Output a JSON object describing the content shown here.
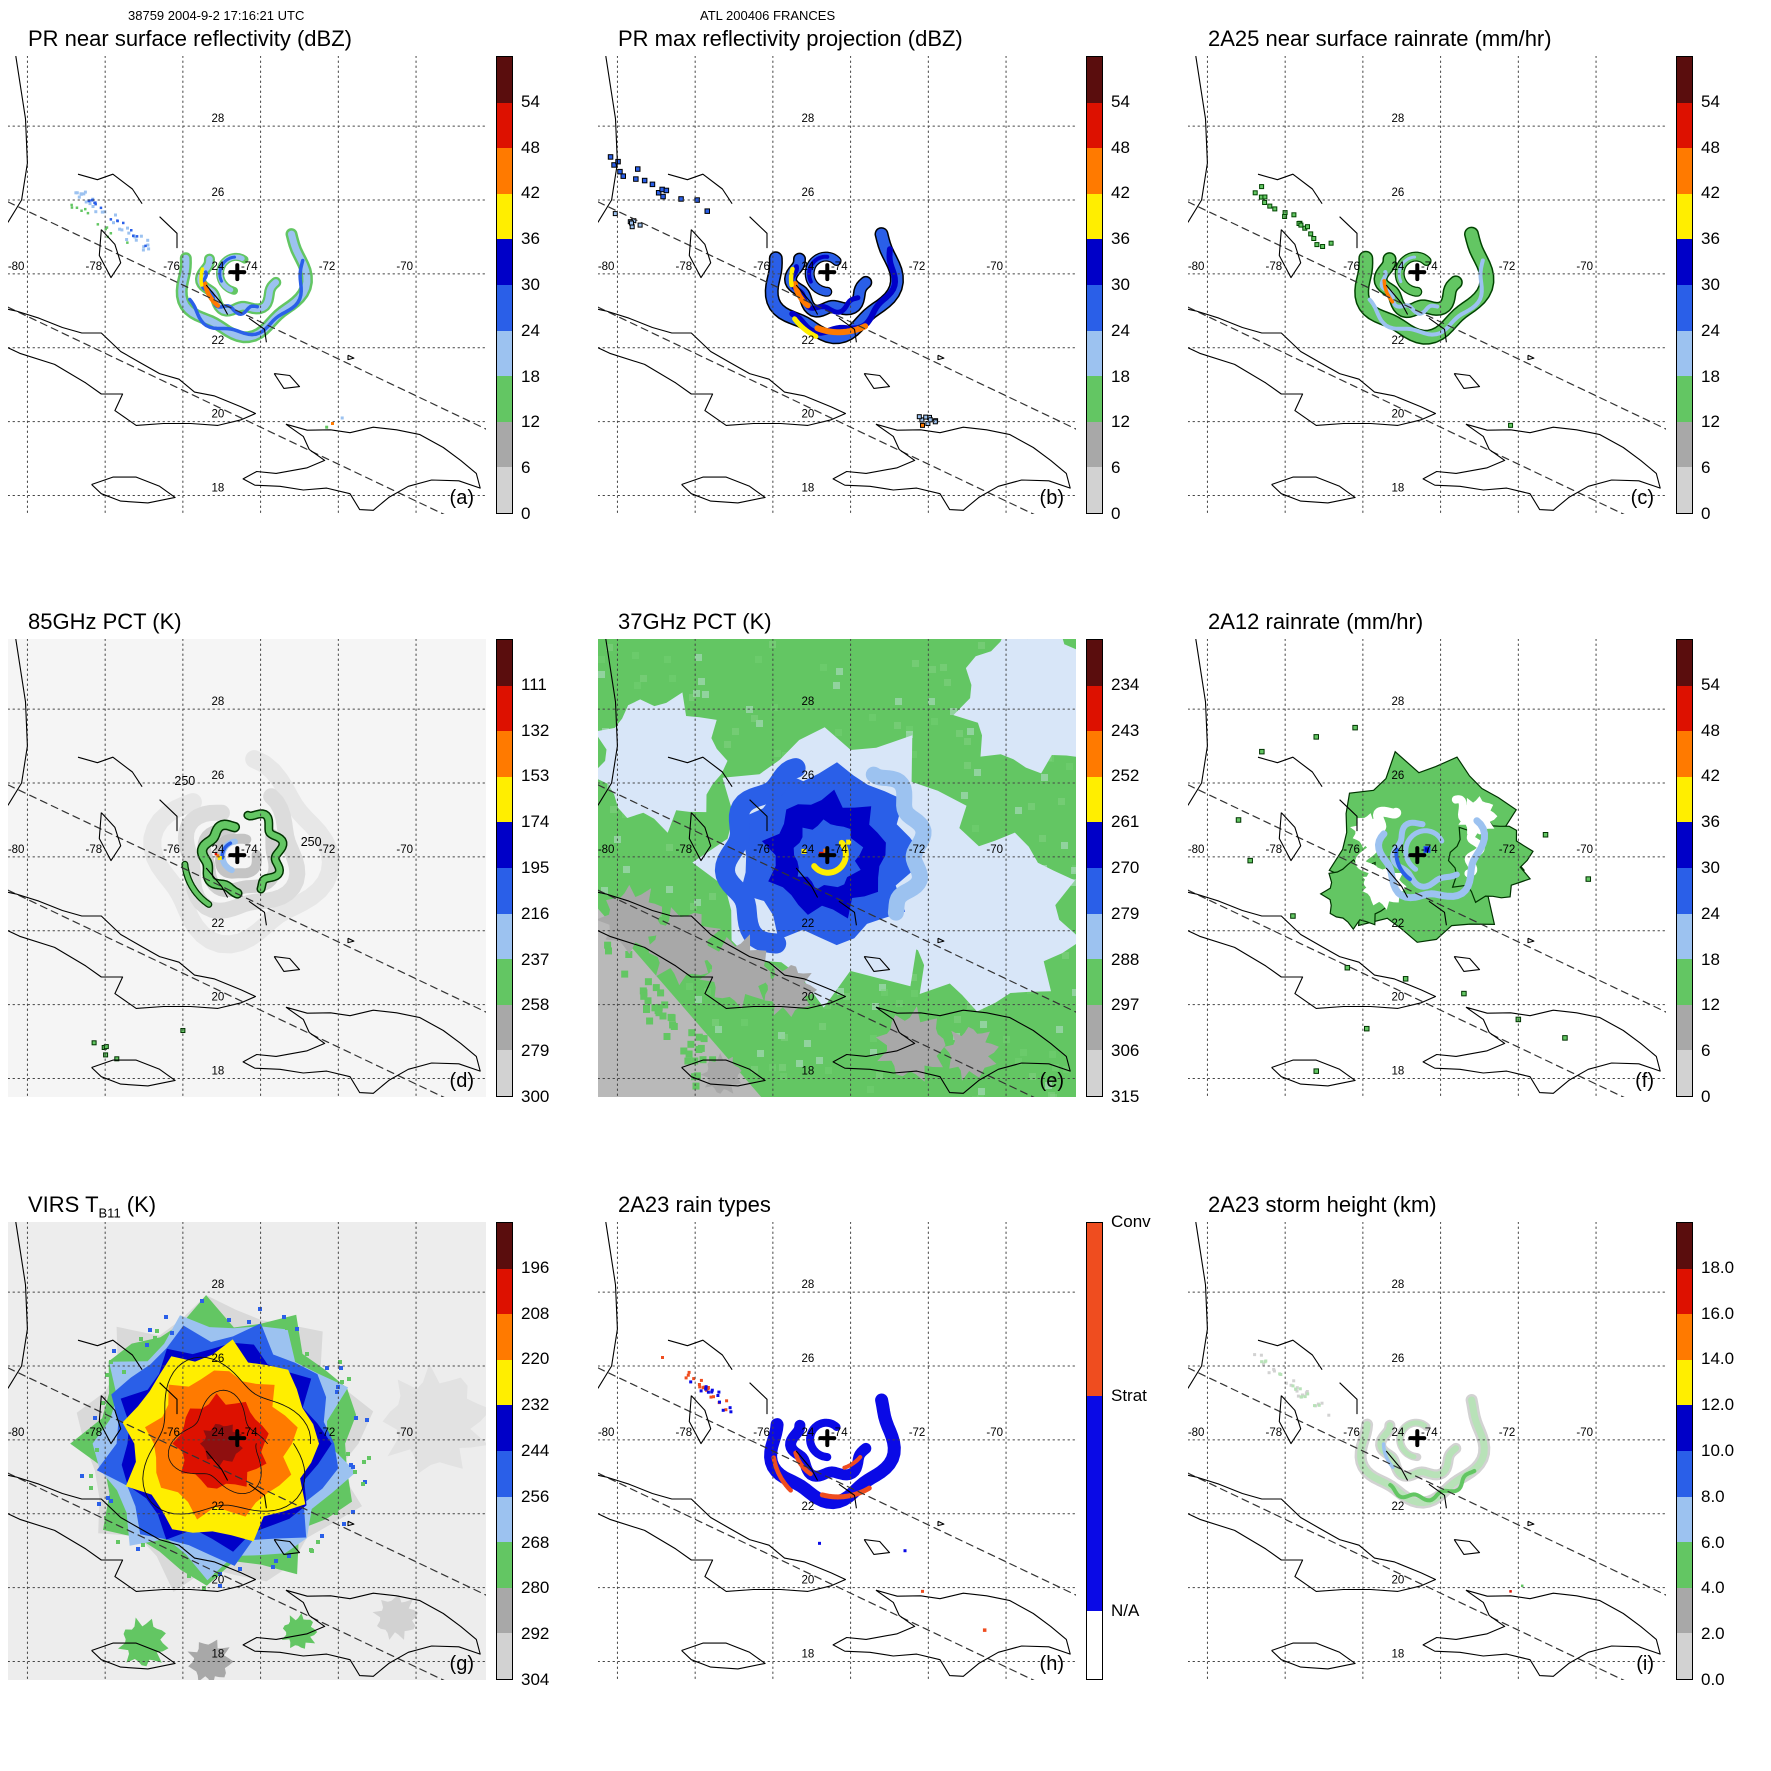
{
  "header": {
    "left": "38759 2004-9-2 17:16:21 UTC",
    "center": "ATL 200406 FRANCES"
  },
  "map": {
    "domain": {
      "lon_min": -80.5,
      "lon_max": -68.2,
      "lat_min": 17.5,
      "lat_max": 29.9
    },
    "lon_values": [
      -80,
      -78,
      -76,
      -74,
      -72,
      -70
    ],
    "lon_labels": [
      "-80",
      "-78",
      "-76",
      "-74",
      "-72",
      "-70"
    ],
    "lat_values": [
      18,
      20,
      22,
      24,
      26,
      28
    ],
    "lat_labels": [
      "18",
      "20",
      "22",
      "24",
      "26",
      "28"
    ],
    "storm_center": {
      "lon": -74.6,
      "lat": 24.05
    },
    "swath_lines": [
      [
        [
          -80.5,
          25.95
        ],
        [
          -68.2,
          19.8
        ]
      ],
      [
        [
          -80.5,
          23.1
        ],
        [
          -68.2,
          16.95
        ]
      ]
    ]
  },
  "palette": {
    "maroon": "#5a0d0d",
    "red": "#dd1100",
    "orange": "#ff7a00",
    "yellow": "#ffee00",
    "blue3": "#0000c8",
    "blue2": "#2a5fe8",
    "blue1": "#9cc2f0",
    "green": "#63c663",
    "gray2": "#a8a8a8",
    "gray1": "#d2d2d2",
    "white": "#ffffff",
    "paleblue": "#d8e6f8",
    "palegreen": "#b8e2b8",
    "conv": "#ef4d1f",
    "strat": "#0a0ae6"
  },
  "panels": [
    {
      "id": "a",
      "letter": "(a)",
      "title": "PR near surface reflectivity (dBZ)",
      "title_parts": [
        {
          "t": "PR near surface reflectivity (dBZ)"
        }
      ],
      "overlay": "a",
      "colorbar": {
        "colors": [
          "maroon",
          "red",
          "orange",
          "yellow",
          "blue3",
          "blue2",
          "blue1",
          "green",
          "gray2",
          "gray1"
        ],
        "ticks": [
          "54",
          "48",
          "42",
          "36",
          "30",
          "24",
          "18",
          "12",
          "6",
          "0"
        ]
      }
    },
    {
      "id": "b",
      "letter": "(b)",
      "title": "PR max reflectivity projection (dBZ)",
      "title_parts": [
        {
          "t": "PR max reflectivity projection (dBZ)"
        }
      ],
      "overlay": "b",
      "colorbar": {
        "colors": [
          "maroon",
          "red",
          "orange",
          "yellow",
          "blue3",
          "blue2",
          "blue1",
          "green",
          "gray2",
          "gray1"
        ],
        "ticks": [
          "54",
          "48",
          "42",
          "36",
          "30",
          "24",
          "18",
          "12",
          "6",
          "0"
        ]
      }
    },
    {
      "id": "c",
      "letter": "(c)",
      "title": "2A25 near surface rainrate (mm/hr)",
      "title_parts": [
        {
          "t": "2A25 near surface rainrate (mm/hr)"
        }
      ],
      "overlay": "c",
      "colorbar": {
        "colors": [
          "maroon",
          "red",
          "orange",
          "yellow",
          "blue3",
          "blue2",
          "blue1",
          "green",
          "gray2",
          "gray1"
        ],
        "ticks": [
          "54",
          "48",
          "42",
          "36",
          "30",
          "24",
          "18",
          "12",
          "6",
          "0"
        ]
      }
    },
    {
      "id": "d",
      "letter": "(d)",
      "title": "85GHz PCT (K)",
      "title_parts": [
        {
          "t": "85GHz PCT (K)"
        }
      ],
      "overlay": "d",
      "map_labels": [
        {
          "text": "250",
          "lon": -75.95,
          "lat": 25.95
        },
        {
          "text": "250",
          "lon": -72.7,
          "lat": 24.3
        }
      ],
      "colorbar": {
        "colors": [
          "maroon",
          "red",
          "orange",
          "yellow",
          "blue3",
          "blue2",
          "blue1",
          "green",
          "gray2",
          "gray1"
        ],
        "ticks": [
          "111",
          "132",
          "153",
          "174",
          "195",
          "216",
          "237",
          "258",
          "279",
          "300"
        ]
      }
    },
    {
      "id": "e",
      "letter": "(e)",
      "title": "37GHz PCT (K)",
      "title_parts": [
        {
          "t": "37GHz PCT (K)"
        }
      ],
      "overlay": "e",
      "colorbar": {
        "colors": [
          "maroon",
          "red",
          "orange",
          "yellow",
          "blue3",
          "blue2",
          "blue1",
          "green",
          "gray2",
          "gray1"
        ],
        "ticks": [
          "234",
          "243",
          "252",
          "261",
          "270",
          "279",
          "288",
          "297",
          "306",
          "315"
        ]
      }
    },
    {
      "id": "f",
      "letter": "(f)",
      "title": "2A12 rainrate (mm/hr)",
      "title_parts": [
        {
          "t": "2A12 rainrate (mm/hr)"
        }
      ],
      "overlay": "f",
      "colorbar": {
        "colors": [
          "maroon",
          "red",
          "orange",
          "yellow",
          "blue3",
          "blue2",
          "blue1",
          "green",
          "gray2",
          "gray1"
        ],
        "ticks": [
          "54",
          "48",
          "42",
          "36",
          "30",
          "24",
          "18",
          "12",
          "6",
          "0"
        ]
      }
    },
    {
      "id": "g",
      "letter": "(g)",
      "title": "VIRS TB11 (K)",
      "title_parts": [
        {
          "t": "VIRS T"
        },
        {
          "t": "B11",
          "sub": true
        },
        {
          "t": " (K)"
        }
      ],
      "overlay": "g",
      "colorbar": {
        "colors": [
          "maroon",
          "red",
          "orange",
          "yellow",
          "blue3",
          "blue2",
          "blue1",
          "green",
          "gray2",
          "gray1"
        ],
        "ticks": [
          "196",
          "208",
          "220",
          "232",
          "244",
          "256",
          "268",
          "280",
          "292",
          "304"
        ]
      }
    },
    {
      "id": "h",
      "letter": "(h)",
      "title": "2A23 rain types",
      "title_parts": [
        {
          "t": "2A23 rain types"
        }
      ],
      "overlay": "h",
      "colorbar": {
        "colors": [
          "conv",
          "strat",
          "white"
        ],
        "ticks": [
          "Conv",
          "Strat",
          "N/A"
        ],
        "tick_positions": [
          0.0,
          0.38,
          0.85
        ],
        "segment_heights": [
          0.38,
          0.47,
          0.15
        ]
      }
    },
    {
      "id": "i",
      "letter": "(i)",
      "title": "2A23 storm height (km)",
      "title_parts": [
        {
          "t": "2A23 storm height (km)"
        }
      ],
      "overlay": "i",
      "colorbar": {
        "colors": [
          "maroon",
          "red",
          "orange",
          "yellow",
          "blue3",
          "blue2",
          "blue1",
          "green",
          "gray2",
          "gray1"
        ],
        "ticks": [
          "18.0",
          "16.0",
          "14.0",
          "12.0",
          "10.0",
          "8.0",
          "6.0",
          "4.0",
          "2.0",
          "0.0"
        ]
      }
    }
  ],
  "chart_data": [
    {
      "panel": "a",
      "type": "heatmap",
      "title": "PR near surface reflectivity",
      "units": "dBZ",
      "colorbar_ticks": [
        54,
        48,
        42,
        36,
        30,
        24,
        18,
        12,
        6,
        0
      ],
      "lon_range": [
        -80.5,
        -68.2
      ],
      "lat_range": [
        17.5,
        29.9
      ],
      "storm_center": {
        "lon": -74.6,
        "lat": 24.05
      },
      "notes": "Spiral rainbands 18-42 dBZ east-south-west of center inside narrow PR swath; light-blue speckle band to the northwest."
    },
    {
      "panel": "b",
      "type": "heatmap",
      "title": "PR max reflectivity projection",
      "units": "dBZ",
      "colorbar_ticks": [
        54,
        48,
        42,
        36,
        30,
        24,
        18,
        12,
        6,
        0
      ],
      "lon_range": [
        -80.5,
        -68.2
      ],
      "lat_range": [
        17.5,
        29.9
      ],
      "storm_center": {
        "lon": -74.6,
        "lat": 24.05
      },
      "notes": "Same bands as (a) but broader and more intense, 24-48 dBZ, with scattered echoes along the swath edges."
    },
    {
      "panel": "c",
      "type": "heatmap",
      "title": "2A25 near surface rainrate",
      "units": "mm/hr",
      "colorbar_ticks": [
        54,
        48,
        42,
        36,
        30,
        24,
        18,
        12,
        6,
        0
      ],
      "lon_range": [
        -80.5,
        -68.2
      ],
      "lat_range": [
        17.5,
        29.9
      ],
      "storm_center": {
        "lon": -74.6,
        "lat": 24.05
      },
      "notes": "Green (6-18 mm/hr) comma-shaped rainbands with embedded light-blue and small orange cores."
    },
    {
      "panel": "d",
      "type": "heatmap",
      "title": "85GHz PCT",
      "units": "K",
      "colorbar_ticks": [
        111,
        132,
        153,
        174,
        195,
        216,
        237,
        258,
        279,
        300
      ],
      "contour_labels": [
        250,
        250
      ],
      "storm_center": {
        "lon": -74.6,
        "lat": 24.05
      },
      "notes": "Mostly 258-300 K (gray/white); 237-258 K green contours around the eyewall with small 195-216 K blue and warm-spot pixels; 250 K contours labeled."
    },
    {
      "panel": "e",
      "type": "heatmap",
      "title": "37GHz PCT",
      "units": "K",
      "colorbar_ticks": [
        234,
        243,
        252,
        261,
        270,
        279,
        288,
        297,
        306,
        315
      ],
      "storm_center": {
        "lon": -74.6,
        "lat": 24.05
      },
      "notes": "Broad 288-297 K green background (ocean), 261-279 K blue cyclone spiral, 252-261 K yellow eyewall pixels, <243 K red eye pixel, gray land (Cuba, Hispaniola, Jamaica)."
    },
    {
      "panel": "f",
      "type": "heatmap",
      "title": "2A12 rainrate",
      "units": "mm/hr",
      "colorbar_ticks": [
        54,
        48,
        42,
        36,
        30,
        24,
        18,
        12,
        6,
        0
      ],
      "storm_center": {
        "lon": -74.6,
        "lat": 24.05
      },
      "notes": "Wide green (6-18 mm/hr) shield with light-blue spiral arcs and a small dark-blue 24-30 mm/hr core at center; scattered outlined green cells around periphery."
    },
    {
      "panel": "g",
      "type": "heatmap",
      "title": "VIRS TB11",
      "units": "K",
      "colorbar_ticks": [
        196,
        208,
        220,
        232,
        244,
        256,
        268,
        280,
        292,
        304
      ],
      "storm_center": {
        "lon": -74.6,
        "lat": 24.05
      },
      "notes": "Large cold cloud shield: <208 K red core, 208-220 K orange, 220-232 K yellow ring, 232-256 K blue edges, 268-280 K green fringe over 280-304 K warm background."
    },
    {
      "panel": "h",
      "type": "heatmap",
      "title": "2A23 rain types",
      "categories": [
        "Conv",
        "Strat",
        "N/A"
      ],
      "category_colors": [
        "#ef4d1f",
        "#0a0ae6",
        "#ffffff"
      ],
      "storm_center": {
        "lon": -74.6,
        "lat": 24.05
      },
      "notes": "Stratiform (blue) spiral bands with convective (red-orange) segments embedded; speckled mixed band to the northwest; white = no rain."
    },
    {
      "panel": "i",
      "type": "heatmap",
      "title": "2A23 storm height",
      "units": "km",
      "colorbar_ticks": [
        18.0,
        16.0,
        14.0,
        12.0,
        10.0,
        8.0,
        6.0,
        4.0,
        2.0,
        0.0
      ],
      "storm_center": {
        "lon": -74.6,
        "lat": 24.05
      },
      "notes": "Storm heights mostly 2-6 km (gray/green) along the rainbands with a few 6-10 km light-blue cells."
    }
  ]
}
